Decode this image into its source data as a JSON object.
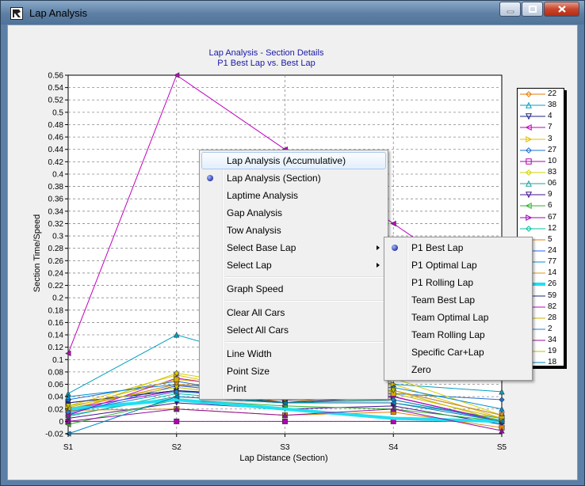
{
  "window": {
    "title": "Lap Analysis"
  },
  "chart_data": {
    "type": "line",
    "title": "Lap Analysis - Section Details",
    "subtitle": "P1 Best Lap vs.  Best Lap",
    "xlabel": "Lap Distance (Section)",
    "ylabel": "Section Time/Speed",
    "categories": [
      "S1",
      "S2",
      "S3",
      "S4",
      "S5"
    ],
    "ylim": [
      -0.02,
      0.56
    ],
    "yticks": [
      "-0.02",
      "0",
      "0.02",
      "0.04",
      "0.06",
      "0.08",
      "0.1",
      "0.12",
      "0.14",
      "0.16",
      "0.18",
      "0.2",
      "0.22",
      "0.24",
      "0.26",
      "0.28",
      "0.3",
      "0.32",
      "0.34",
      "0.36",
      "0.38",
      "0.4",
      "0.42",
      "0.44",
      "0.46",
      "0.48",
      "0.5",
      "0.52",
      "0.54",
      "0.56"
    ],
    "grid": true,
    "legend_position": "right",
    "series": [
      {
        "name": "22",
        "color": "#e07b00",
        "marker": "diamond",
        "values": [
          0.02,
          0.06,
          0.03,
          0.05,
          0.01
        ]
      },
      {
        "name": "38",
        "color": "#00a0c0",
        "marker": "triangle-up",
        "values": [
          0.045,
          0.14,
          0.09,
          0.06,
          0.048
        ]
      },
      {
        "name": "4",
        "color": "#1a237e",
        "marker": "triangle-down",
        "values": [
          0.03,
          0.05,
          0.03,
          0.04,
          0.0
        ]
      },
      {
        "name": "7",
        "color": "#c000c0",
        "marker": "triangle-left",
        "values": [
          0.11,
          0.56,
          0.44,
          0.32,
          0.2
        ]
      },
      {
        "name": "3",
        "color": "#e0c000",
        "marker": "triangle-right",
        "values": [
          0.025,
          0.075,
          0.04,
          0.06,
          0.005
        ]
      },
      {
        "name": "27",
        "color": "#1e6fd0",
        "marker": "diamond",
        "values": [
          0.035,
          0.065,
          0.035,
          0.045,
          0.035
        ]
      },
      {
        "name": "10",
        "color": "#b000b0",
        "marker": "square",
        "values": [
          0.0,
          0.0,
          0.0,
          0.0,
          0.0
        ]
      },
      {
        "name": "83",
        "color": "#d0d000",
        "marker": "diamond",
        "values": [
          0.015,
          0.078,
          0.05,
          0.07,
          0.01
        ]
      },
      {
        "name": "06",
        "color": "#20a0a0",
        "marker": "triangle-up",
        "values": [
          0.01,
          0.04,
          0.03,
          0.03,
          0.005
        ]
      },
      {
        "name": "9",
        "color": "#401090",
        "marker": "triangle-down",
        "values": [
          0.005,
          0.03,
          0.02,
          0.025,
          -0.005
        ]
      },
      {
        "name": "6",
        "color": "#30b030",
        "marker": "triangle-left",
        "values": [
          -0.005,
          0.035,
          0.025,
          0.02,
          0.0
        ]
      },
      {
        "name": "67",
        "color": "#a000c0",
        "marker": "triangle-right",
        "values": [
          0.02,
          0.05,
          0.035,
          0.04,
          0.0
        ]
      },
      {
        "name": "12",
        "color": "#00c0a0",
        "marker": "diamond",
        "values": [
          0.008,
          0.045,
          0.03,
          0.035,
          0.002
        ]
      },
      {
        "name": "5",
        "color": "#e08000",
        "marker": "square",
        "values": [
          0.018,
          0.02,
          0.01,
          0.015,
          -0.01
        ]
      },
      {
        "name": "24",
        "color": "#2060ff",
        "marker": "diamond",
        "values": [
          0.012,
          0.058,
          0.04,
          0.05,
          0.01
        ]
      },
      {
        "name": "77",
        "color": "#0090d0",
        "marker": "triangle-up",
        "values": [
          0.04,
          0.06,
          0.045,
          0.055,
          0.02
        ]
      },
      {
        "name": "14",
        "color": "#e09020",
        "marker": "triangle-down",
        "values": [
          0.02,
          0.06,
          0.05,
          0.05,
          0.01
        ]
      },
      {
        "name": "26",
        "color": "#20e0f0",
        "marker": "none",
        "values": [
          0.02,
          0.035,
          0.02,
          0.005,
          0.0
        ]
      },
      {
        "name": "59",
        "color": "#1a237e",
        "marker": "triangle-right",
        "values": [
          0.03,
          0.05,
          0.04,
          0.04,
          0.0
        ]
      },
      {
        "name": "82",
        "color": "#c000c0",
        "marker": "diamond",
        "values": [
          0.01,
          0.07,
          0.045,
          0.04,
          0.0
        ]
      },
      {
        "name": "28",
        "color": "#d0b000",
        "marker": "square",
        "values": [
          0.022,
          0.068,
          0.05,
          0.045,
          0.005
        ]
      },
      {
        "name": "2",
        "color": "#2080d0",
        "marker": "diamond",
        "values": [
          0.015,
          0.048,
          0.04,
          0.035,
          0.0
        ]
      },
      {
        "name": "34",
        "color": "#9010a0",
        "marker": "triangle-up",
        "values": [
          0.0,
          0.02,
          0.01,
          0.02,
          -0.015
        ]
      },
      {
        "name": "19",
        "color": "#c0c000",
        "marker": "triangle-down",
        "values": [
          0.025,
          0.055,
          0.035,
          0.05,
          0.0
        ]
      },
      {
        "name": "18",
        "color": "#0080c0",
        "marker": "triangle-left",
        "values": [
          -0.02,
          0.04,
          0.03,
          0.03,
          0.0
        ]
      }
    ]
  },
  "context_menu": {
    "items": [
      {
        "label": "Lap Analysis (Accumulative)",
        "highlighted": true
      },
      {
        "label": "Lap Analysis (Section)",
        "checked": true
      },
      {
        "label": "Laptime Analysis"
      },
      {
        "label": "Gap Analysis"
      },
      {
        "label": "Tow Analysis"
      },
      {
        "label": "Select Base Lap",
        "submenu": true
      },
      {
        "label": "Select Lap",
        "submenu": true
      },
      {
        "separator": true
      },
      {
        "label": "Graph Speed"
      },
      {
        "separator": true
      },
      {
        "label": "Clear All Cars"
      },
      {
        "label": "Select All Cars"
      },
      {
        "separator": true
      },
      {
        "label": "Line Width"
      },
      {
        "label": "Point Size"
      },
      {
        "label": "Print"
      }
    ]
  },
  "submenu": {
    "items": [
      {
        "label": "P1 Best Lap",
        "checked": true
      },
      {
        "label": "P1 Optimal Lap"
      },
      {
        "label": "P1 Rolling Lap"
      },
      {
        "label": "Team Best Lap"
      },
      {
        "label": "Team Optimal Lap"
      },
      {
        "label": "Team Rolling Lap"
      },
      {
        "label": "Specific Car+Lap"
      },
      {
        "label": "Zero"
      }
    ]
  }
}
